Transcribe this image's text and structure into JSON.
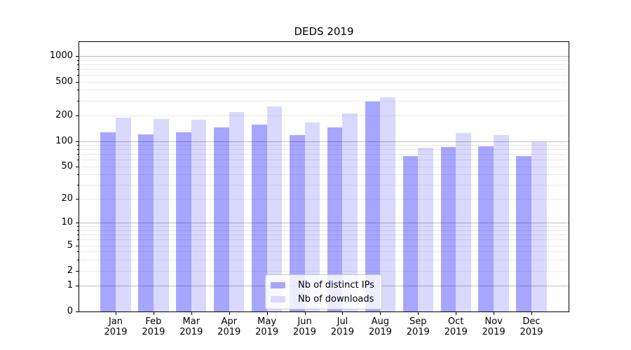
{
  "chart_data": {
    "type": "bar",
    "title": "DEDS 2019",
    "categories": [
      "Jan",
      "Feb",
      "Mar",
      "Apr",
      "May",
      "Jun",
      "Jul",
      "Aug",
      "Sep",
      "Oct",
      "Nov",
      "Dec"
    ],
    "x_tick_second_line": "2019",
    "series": [
      {
        "name": "Nb of distinct IPs",
        "color": "rgba(0,0,255,0.35)",
        "color_hex": "#a6a6ff",
        "values": [
          127,
          121,
          127,
          144,
          156,
          117,
          144,
          291,
          66,
          85,
          87,
          66
        ]
      },
      {
        "name": "Nb of downloads",
        "color": "rgba(0,0,255,0.15)",
        "color_hex": "#d9d9ff",
        "values": [
          190,
          182,
          179,
          222,
          256,
          166,
          210,
          328,
          84,
          124,
          117,
          98
        ]
      }
    ],
    "yticks": [
      0,
      1,
      2,
      5,
      10,
      20,
      50,
      100,
      200,
      500,
      1000
    ],
    "ylim": [
      0,
      1450
    ],
    "yscale": "log-like with compressed 0-10 region",
    "xlabel": "",
    "ylabel": "",
    "grid": "both (major darker at powers of 10, faint minors)",
    "legend_position": "lower center"
  },
  "colors": {
    "background": "#ffffff",
    "spine": "#000000",
    "grid_major": "#bdbdbd",
    "grid_minor": "#ebebeb",
    "legend_background": "#ffffff",
    "legend_border": "#cccccc",
    "text": "#000000"
  }
}
